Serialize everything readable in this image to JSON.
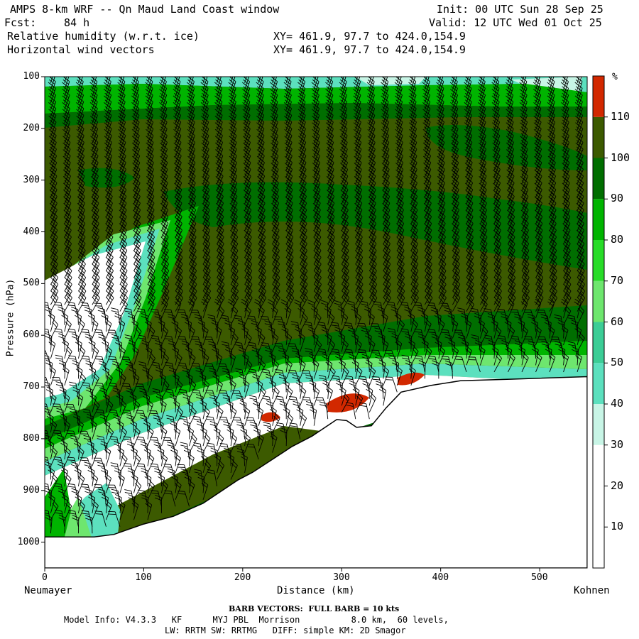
{
  "header": {
    "title": "AMPS 8-km WRF -- Qn Maud Land Coast window",
    "init": "Init: 00 UTC Sun 28 Sep 25",
    "fcst_label": "Fcst:",
    "fcst_value": "84 h",
    "valid": "Valid: 12 UTC Wed 01 Oct 25",
    "field1": "Relative humidity (w.r.t. ice)",
    "field2": "Horizontal wind vectors",
    "xy1": "XY= 461.9, 97.7 to 424.0,154.9",
    "xy2": "XY= 461.9, 97.7 to 424.0,154.9"
  },
  "footer": {
    "barb_note": "BARB VECTORS:  FULL BARB = 10 kts",
    "model_info": "Model Info: V4.3.3   KF      MYJ PBL  Morrison          8.0 km,  60 levels,",
    "model_info2": "LW: RRTM SW: RRTMG   DIFF: simple KM: 2D Smagor"
  },
  "colors": {
    "rh_lt30": "#ffffff",
    "rh_30_40": "#c8f5e6",
    "rh_40_50": "#5ce0be",
    "rh_50_60": "#3ccd96",
    "rh_60_70": "#6ee66e",
    "rh_70_80": "#28dc28",
    "rh_80_90": "#00b400",
    "rh_90_100": "#006e00",
    "rh_100_110": "#3c5a00",
    "rh_gt110": "#d22800",
    "terrain": "#ffffff",
    "barb": "#000000"
  },
  "chart_data": {
    "type": "cross-section",
    "title": "Relative humidity (w.r.t. ice)",
    "xlabel": "Distance (km)",
    "ylabel": "Pressure (hPa)",
    "x_start_label": "Neumayer",
    "x_end_label": "Kohnen",
    "xlim": [
      0,
      548
    ],
    "ylim": [
      1050,
      100
    ],
    "xticks": [
      0,
      100,
      200,
      300,
      400,
      500
    ],
    "yticks": [
      100,
      200,
      300,
      400,
      500,
      600,
      700,
      800,
      900,
      1000
    ],
    "colorbar": {
      "unit": "%",
      "ticks": [
        10,
        20,
        30,
        40,
        50,
        60,
        70,
        80,
        90,
        100,
        110
      ],
      "levels": [
        {
          "min": 0,
          "max": 30,
          "color": "#ffffff"
        },
        {
          "min": 30,
          "max": 40,
          "color": "#c8f5e6"
        },
        {
          "min": 40,
          "max": 50,
          "color": "#5ce0be"
        },
        {
          "min": 50,
          "max": 60,
          "color": "#3ccd96"
        },
        {
          "min": 60,
          "max": 70,
          "color": "#6ee66e"
        },
        {
          "min": 70,
          "max": 80,
          "color": "#28dc28"
        },
        {
          "min": 80,
          "max": 90,
          "color": "#00b400"
        },
        {
          "min": 90,
          "max": 100,
          "color": "#006e00"
        },
        {
          "min": 100,
          "max": 110,
          "color": "#3c5a00"
        },
        {
          "min": 110,
          "max": 120,
          "color": "#d22800"
        }
      ]
    },
    "terrain_surface": [
      {
        "x": 0,
        "p": 990
      },
      {
        "x": 50,
        "p": 990
      },
      {
        "x": 70,
        "p": 985
      },
      {
        "x": 100,
        "p": 965
      },
      {
        "x": 130,
        "p": 950
      },
      {
        "x": 160,
        "p": 925
      },
      {
        "x": 195,
        "p": 880
      },
      {
        "x": 210,
        "p": 865
      },
      {
        "x": 230,
        "p": 840
      },
      {
        "x": 250,
        "p": 815
      },
      {
        "x": 270,
        "p": 795
      },
      {
        "x": 295,
        "p": 763
      },
      {
        "x": 305,
        "p": 765
      },
      {
        "x": 315,
        "p": 778
      },
      {
        "x": 330,
        "p": 775
      },
      {
        "x": 345,
        "p": 740
      },
      {
        "x": 360,
        "p": 710
      },
      {
        "x": 390,
        "p": 697
      },
      {
        "x": 420,
        "p": 688
      },
      {
        "x": 470,
        "p": 685
      },
      {
        "x": 548,
        "p": 680
      }
    ]
  }
}
